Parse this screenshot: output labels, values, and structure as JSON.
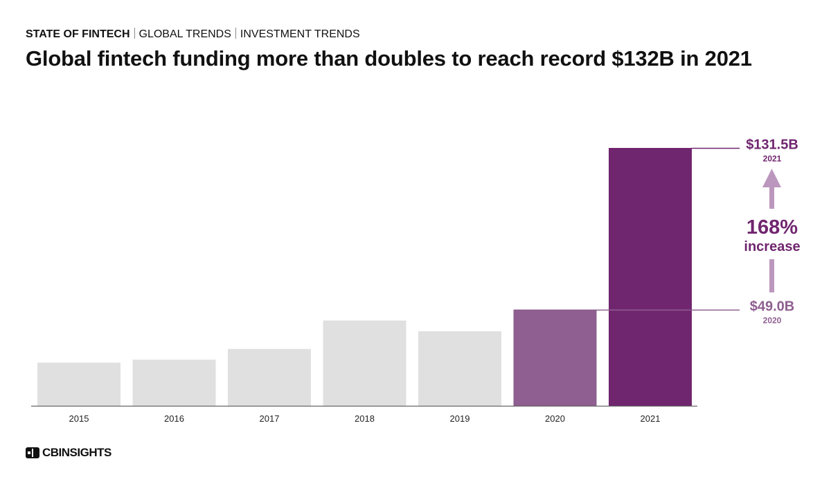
{
  "header": {
    "breadcrumb": [
      "STATE OF FINTECH",
      "GLOBAL TRENDS",
      "INVESTMENT TRENDS"
    ],
    "title": "Global fintech funding more than doubles to reach record $132B in 2021"
  },
  "colors": {
    "bar_default": "#e0e0e0",
    "bar_2020": "#8e5f90",
    "bar_2021": "#70256f",
    "arrow": "#bc97bd",
    "axis": "#666666"
  },
  "chart_data": {
    "type": "bar",
    "title": "Global fintech funding more than doubles to reach record $132B in 2021",
    "xlabel": "",
    "ylabel": "",
    "ylim": [
      0,
      131.5
    ],
    "grid": false,
    "categories": [
      "2015",
      "2016",
      "2017",
      "2018",
      "2019",
      "2020",
      "2021"
    ],
    "values": [
      22,
      23.5,
      29,
      43.5,
      38,
      49.0,
      131.5
    ],
    "highlights": [
      {
        "year": "2020",
        "value_label": "$49.0B",
        "year_label": "2020"
      },
      {
        "year": "2021",
        "value_label": "$131.5B",
        "year_label": "2021"
      }
    ],
    "annotation": {
      "percent": "168%",
      "text": "increase"
    }
  },
  "footer": {
    "logo_text": "CBINSIGHTS"
  }
}
